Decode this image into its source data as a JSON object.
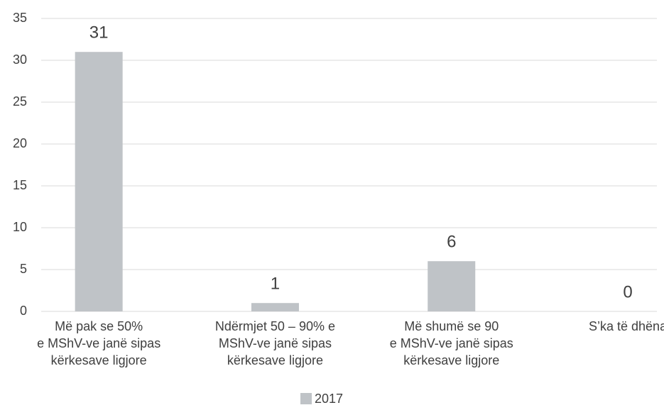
{
  "chart_data": {
    "type": "bar",
    "categories": [
      [
        "Më pak se 50%",
        "e MShV-ve janë sipas",
        "kërkesave ligjore"
      ],
      [
        "Ndërmjet 50 – 90% e",
        "MShV-ve janë sipas",
        "kërkesave ligjore"
      ],
      [
        "Më shumë se 90",
        "e MShV-ve janë sipas",
        "kërkesave ligjore"
      ],
      [
        "S’ka të dhëna"
      ]
    ],
    "series": [
      {
        "name": "2017",
        "color": "#bfc3c7",
        "values": [
          31,
          1,
          6,
          0
        ]
      }
    ],
    "ylim": [
      0,
      35
    ],
    "yticks": [
      0,
      5,
      10,
      15,
      20,
      25,
      30,
      35
    ],
    "grid": true,
    "legend": "bottom"
  }
}
